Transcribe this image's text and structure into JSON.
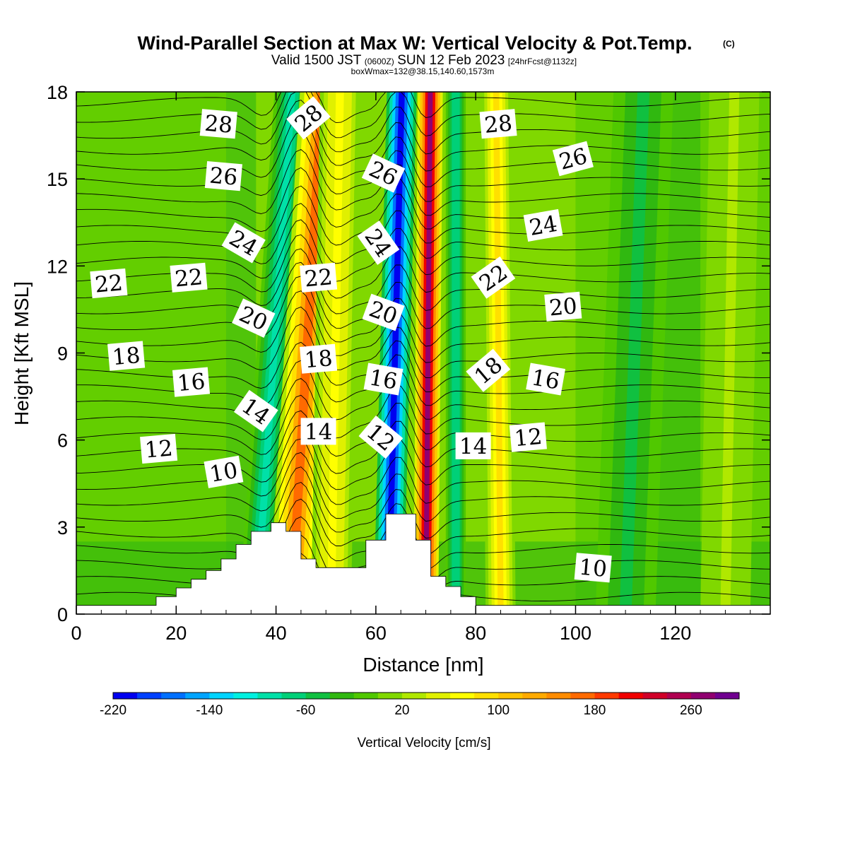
{
  "title": {
    "main": "Wind-Parallel Section at Max W: Vertical Velocity & Pot.Temp.",
    "copyright": "(C)",
    "valid_prefix": "Valid 1500 JST",
    "valid_utc": "(0600Z)",
    "valid_date": "SUN 12 Feb 2023",
    "forecast": "[24hrFcst@1132z]",
    "box_info": "boxWmax=132@38.15,140.60,1573m"
  },
  "colors": {
    "background": "#ffffff",
    "terrain": "#ffffff",
    "contour_line": "#000000",
    "frame": "#000000"
  },
  "chart_data": {
    "type": "heatmap",
    "xlabel": "Distance [nm]",
    "ylabel": "Height [Kft MSL]",
    "xlim": [
      0,
      139
    ],
    "ylim": [
      0,
      18
    ],
    "x_ticks": [
      0,
      20,
      40,
      60,
      80,
      100,
      120
    ],
    "y_ticks": [
      0,
      3,
      6,
      9,
      12,
      15,
      18
    ],
    "grid": false,
    "colorbar": {
      "label": "Vertical Velocity [cm/s]",
      "placement": "bottom",
      "min": -220,
      "max": 300,
      "step": 20,
      "tick_labels": [
        -220,
        -140,
        -60,
        20,
        100,
        180,
        260
      ],
      "colors": [
        "#0000f0",
        "#0040ff",
        "#0070ff",
        "#00a4ff",
        "#00d4ff",
        "#00f0e0",
        "#00e0a8",
        "#00d078",
        "#10c040",
        "#30b810",
        "#50c800",
        "#80d800",
        "#b0e800",
        "#e0f000",
        "#ffff00",
        "#ffe000",
        "#ffc400",
        "#ffaa00",
        "#ff8c00",
        "#ff6a00",
        "#ff3a00",
        "#f00000",
        "#d00028",
        "#b00050",
        "#900070",
        "#700090"
      ]
    },
    "terrain_profile": {
      "x": [
        0,
        16,
        16,
        20,
        20,
        23,
        23,
        26,
        26,
        29,
        29,
        32,
        32,
        35,
        35,
        39,
        39,
        42,
        42,
        45,
        45,
        48,
        48,
        58,
        58,
        62,
        62,
        68,
        68,
        71,
        71,
        74,
        74,
        77,
        77,
        80,
        80,
        139
      ],
      "y": [
        0.3,
        0.3,
        0.6,
        0.6,
        0.9,
        0.9,
        1.2,
        1.2,
        1.5,
        1.5,
        1.9,
        1.9,
        2.4,
        2.4,
        2.85,
        2.85,
        3.15,
        3.15,
        2.85,
        2.85,
        1.9,
        1.9,
        1.6,
        1.6,
        2.55,
        2.55,
        3.45,
        3.45,
        2.55,
        2.55,
        1.3,
        1.3,
        0.95,
        0.95,
        0.6,
        0.6,
        0.3,
        0.3
      ]
    },
    "velocity_bands": [
      {
        "x_base": 36,
        "tilt": 0.4,
        "width": 3.5,
        "value": -100
      },
      {
        "x_base": 43,
        "tilt": 0.35,
        "width": 4.5,
        "value": 160
      },
      {
        "x_base": 51,
        "tilt": 0.1,
        "width": 4.0,
        "value": 70
      },
      {
        "x_base": 62.5,
        "tilt": 0.15,
        "width": 3.0,
        "value": -210
      },
      {
        "x_base": 70,
        "tilt": 0.05,
        "width": 2.5,
        "value": 260
      },
      {
        "x_base": 76,
        "tilt": 0.0,
        "width": 2.0,
        "value": -80
      },
      {
        "x_base": 85,
        "tilt": -0.05,
        "width": 3.0,
        "value": 80
      },
      {
        "x_base": 110,
        "tilt": 0.2,
        "width": 6.0,
        "value": -50
      },
      {
        "x_base": 130,
        "tilt": 0.1,
        "width": 5.0,
        "value": 20
      }
    ],
    "contour_labels": [
      {
        "text": "28",
        "x": 28.5,
        "y": 16.9,
        "angle": 5
      },
      {
        "text": "28",
        "x": 46.5,
        "y": 17.1,
        "angle": -40
      },
      {
        "text": "28",
        "x": 84.5,
        "y": 16.9,
        "angle": -5
      },
      {
        "text": "26",
        "x": 29.5,
        "y": 15.1,
        "angle": 5
      },
      {
        "text": "26",
        "x": 61.5,
        "y": 15.2,
        "angle": 25
      },
      {
        "text": "26",
        "x": 99.5,
        "y": 15.7,
        "angle": -15
      },
      {
        "text": "24",
        "x": 33.5,
        "y": 12.8,
        "angle": 30
      },
      {
        "text": "24",
        "x": 60.5,
        "y": 12.8,
        "angle": 55
      },
      {
        "text": "24",
        "x": 93.5,
        "y": 13.4,
        "angle": -10
      },
      {
        "text": "22",
        "x": 6.5,
        "y": 11.4,
        "angle": -5
      },
      {
        "text": "22",
        "x": 22.5,
        "y": 11.6,
        "angle": -5
      },
      {
        "text": "22",
        "x": 48.5,
        "y": 11.6,
        "angle": -5
      },
      {
        "text": "22",
        "x": 83.5,
        "y": 11.6,
        "angle": -35
      },
      {
        "text": "20",
        "x": 35.5,
        "y": 10.2,
        "angle": 25
      },
      {
        "text": "20",
        "x": 61.5,
        "y": 10.4,
        "angle": 20
      },
      {
        "text": "20",
        "x": 97.5,
        "y": 10.6,
        "angle": -5
      },
      {
        "text": "18",
        "x": 10.0,
        "y": 8.9,
        "angle": -5
      },
      {
        "text": "18",
        "x": 48.5,
        "y": 8.8,
        "angle": -5
      },
      {
        "text": "18",
        "x": 82.5,
        "y": 8.4,
        "angle": -40
      },
      {
        "text": "16",
        "x": 23.0,
        "y": 8.0,
        "angle": -5
      },
      {
        "text": "16",
        "x": 61.5,
        "y": 8.1,
        "angle": 10
      },
      {
        "text": "16",
        "x": 94.0,
        "y": 8.1,
        "angle": 10
      },
      {
        "text": "14",
        "x": 36.0,
        "y": 7.0,
        "angle": 35
      },
      {
        "text": "14",
        "x": 48.5,
        "y": 6.3,
        "angle": 0
      },
      {
        "text": "14",
        "x": 79.5,
        "y": 5.8,
        "angle": 0
      },
      {
        "text": "12",
        "x": 16.5,
        "y": 5.7,
        "angle": -5
      },
      {
        "text": "12",
        "x": 61.0,
        "y": 6.1,
        "angle": 40
      },
      {
        "text": "12",
        "x": 90.5,
        "y": 6.1,
        "angle": -5
      },
      {
        "text": "10",
        "x": 29.5,
        "y": 4.9,
        "angle": -10
      },
      {
        "text": "10",
        "x": 103.5,
        "y": 1.6,
        "angle": 5
      }
    ]
  }
}
